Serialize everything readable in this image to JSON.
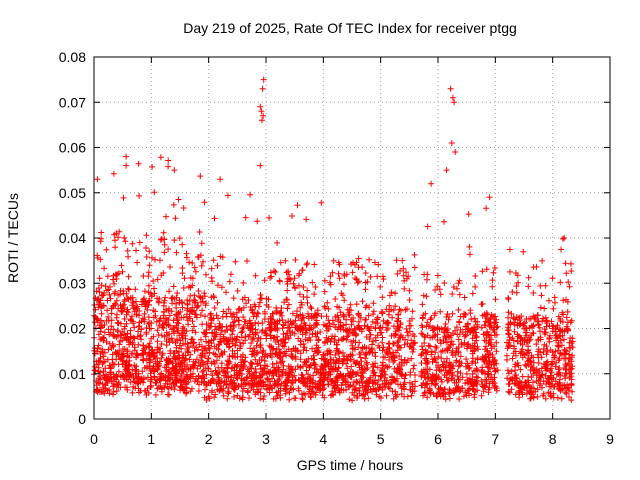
{
  "chart_data": {
    "type": "scatter",
    "title": "Day 219 of 2025, Rate Of TEC Index for receiver ptgg",
    "xlabel": "GPS time / hours",
    "ylabel": "ROTI / TECUs",
    "xlim": [
      0,
      9
    ],
    "ylim": [
      0,
      0.08
    ],
    "xticks": [
      "0",
      "1",
      "2",
      "3",
      "4",
      "5",
      "6",
      "7",
      "8",
      "9"
    ],
    "yticks": [
      "0",
      "0.01",
      "0.02",
      "0.03",
      "0.04",
      "0.05",
      "0.06",
      "0.07",
      "0.08"
    ],
    "grid": true,
    "marker": "+",
    "color": "#ff0000",
    "series": [
      {
        "segments": [
          {
            "x0": 0.0,
            "x1": 1.9,
            "base": 0.005,
            "spread": 0.028,
            "peak": 0.058,
            "density": 1.0
          },
          {
            "x0": 1.9,
            "x1": 4.05,
            "base": 0.004,
            "spread": 0.024,
            "peak": 0.052,
            "density": 0.9
          },
          {
            "x0": 4.05,
            "x1": 5.6,
            "base": 0.004,
            "spread": 0.024,
            "peak": 0.044,
            "density": 0.8
          },
          {
            "x0": 5.7,
            "x1": 6.7,
            "base": 0.004,
            "spread": 0.022,
            "peak": 0.052,
            "density": 0.8
          },
          {
            "x0": 6.75,
            "x1": 7.05,
            "base": 0.005,
            "spread": 0.022,
            "peak": 0.049,
            "density": 0.9
          },
          {
            "x0": 7.2,
            "x1": 8.35,
            "base": 0.004,
            "spread": 0.022,
            "peak": 0.04,
            "density": 0.8
          }
        ],
        "peaks": [
          {
            "x": 0.06,
            "y": 0.053
          },
          {
            "x": 0.56,
            "y": 0.058
          },
          {
            "x": 0.56,
            "y": 0.056
          },
          {
            "x": 1.4,
            "y": 0.055
          },
          {
            "x": 2.2,
            "y": 0.053
          },
          {
            "x": 2.96,
            "y": 0.075
          },
          {
            "x": 2.94,
            "y": 0.073
          },
          {
            "x": 2.9,
            "y": 0.069
          },
          {
            "x": 2.92,
            "y": 0.068
          },
          {
            "x": 2.95,
            "y": 0.067
          },
          {
            "x": 2.93,
            "y": 0.066
          },
          {
            "x": 2.9,
            "y": 0.056
          },
          {
            "x": 6.22,
            "y": 0.073
          },
          {
            "x": 6.26,
            "y": 0.071
          },
          {
            "x": 6.28,
            "y": 0.07
          },
          {
            "x": 6.24,
            "y": 0.061
          },
          {
            "x": 6.3,
            "y": 0.059
          },
          {
            "x": 5.88,
            "y": 0.052
          },
          {
            "x": 6.15,
            "y": 0.055
          },
          {
            "x": 6.9,
            "y": 0.049
          },
          {
            "x": 8.2,
            "y": 0.04
          }
        ]
      }
    ]
  }
}
